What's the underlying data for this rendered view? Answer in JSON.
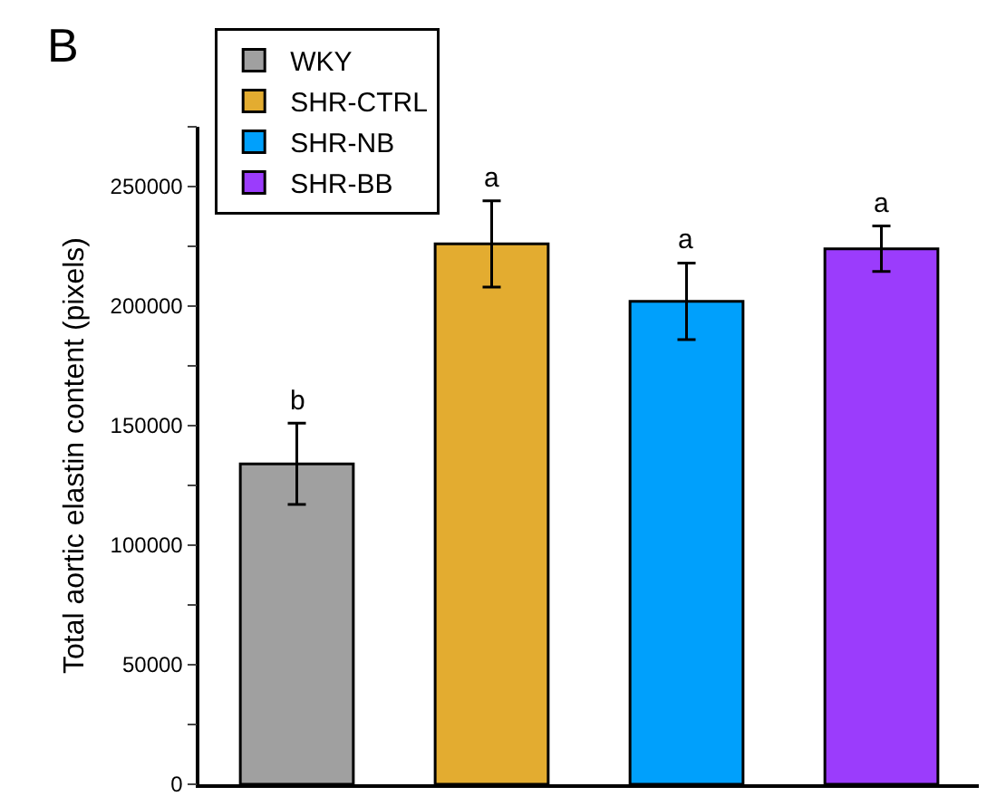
{
  "chart_data": {
    "type": "bar",
    "ylabel": "Total aortic elastin content (pixels)",
    "annotations": [
      "B"
    ],
    "categories": [
      null,
      null,
      null,
      null
    ],
    "series": [
      {
        "name": "WKY",
        "color": "#a0a0a0",
        "values": [
          134000,
          null,
          null,
          null
        ],
        "errors": [
          17000,
          null,
          null,
          null
        ],
        "value_labels": [
          "b",
          null,
          null,
          null
        ]
      },
      {
        "name": "SHR-CTRL",
        "color": "#e3ac30",
        "values": [
          null,
          226000,
          null,
          null
        ],
        "errors": [
          null,
          18000,
          null,
          null
        ],
        "value_labels": [
          null,
          "a",
          null,
          null
        ]
      },
      {
        "name": "SHR-NB",
        "color": "#00a0fc",
        "values": [
          null,
          null,
          202000,
          null
        ],
        "errors": [
          null,
          null,
          16000,
          null
        ],
        "value_labels": [
          null,
          null,
          "a",
          null
        ]
      },
      {
        "name": "SHR-BB",
        "color": "#9b3cfc",
        "values": [
          null,
          null,
          null,
          224000
        ],
        "errors": [
          null,
          null,
          null,
          9500
        ],
        "value_labels": [
          null,
          null,
          null,
          "a"
        ]
      }
    ],
    "ylim": [
      0,
      275000
    ],
    "yticks": [
      0,
      {
        "value": 25000,
        "label": null
      },
      50000,
      {
        "value": 75000,
        "label": null
      },
      100000,
      {
        "value": 125000,
        "label": null
      },
      150000,
      {
        "value": 175000,
        "label": null
      },
      200000,
      {
        "value": 225000,
        "label": null
      },
      250000,
      {
        "value": 275000,
        "label": null
      }
    ],
    "grid": false,
    "legend": "top left"
  }
}
